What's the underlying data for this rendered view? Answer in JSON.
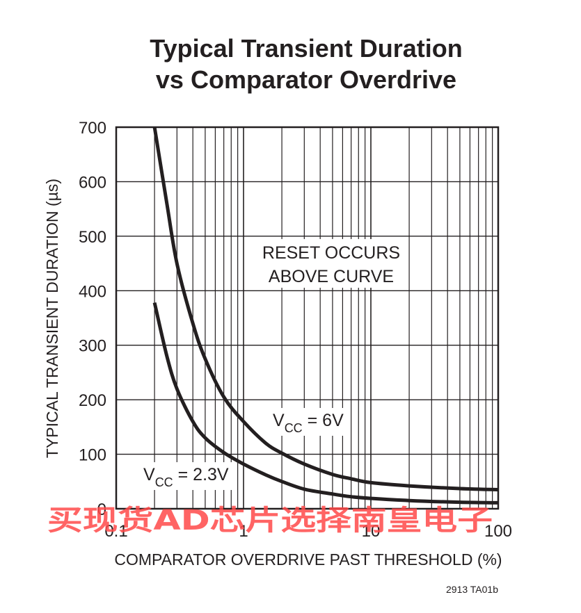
{
  "chart_data": {
    "type": "line",
    "title_lines": [
      "Typical Transient Duration",
      "vs Comparator Overdrive"
    ],
    "xlabel": "COMPARATOR OVERDRIVE PAST THRESHOLD (%)",
    "ylabel": "TYPICAL TRANSIENT DURATION (µs)",
    "xscale": "log",
    "xlim": [
      0.1,
      100
    ],
    "ylim": [
      0,
      700
    ],
    "xticks": [
      0.1,
      1,
      10,
      100
    ],
    "xtick_labels": [
      "0.1",
      "1",
      "10",
      "100"
    ],
    "yticks": [
      0,
      100,
      200,
      300,
      400,
      500,
      600,
      700
    ],
    "ytick_labels": [
      "0",
      "100",
      "200",
      "300",
      "400",
      "500",
      "600",
      "700"
    ],
    "grid": true,
    "series": [
      {
        "name": "VCC = 6V",
        "label_main": "V",
        "label_sub": "CC",
        "label_rest": " = 6V",
        "color": "#231f20",
        "x": [
          0.2,
          0.25,
          0.3,
          0.4,
          0.5,
          0.7,
          1,
          1.5,
          2,
          3,
          5,
          7,
          10,
          20,
          50,
          100
        ],
        "y": [
          700,
          560,
          450,
          340,
          275,
          205,
          160,
          120,
          102,
          82,
          63,
          55,
          48,
          42,
          37,
          35
        ]
      },
      {
        "name": "VCC = 2.3V",
        "label_main": "V",
        "label_sub": "CC",
        "label_rest": " = 2.3V",
        "color": "#231f20",
        "x": [
          0.2,
          0.25,
          0.3,
          0.4,
          0.5,
          0.7,
          1,
          1.5,
          2,
          3,
          5,
          7,
          10,
          20,
          50,
          100
        ],
        "y": [
          378,
          280,
          220,
          160,
          130,
          103,
          82,
          62,
          50,
          36,
          27,
          22,
          19,
          15,
          12,
          11
        ]
      }
    ],
    "annotations": [
      "RESET OCCURS",
      "ABOVE CURVE"
    ]
  },
  "figure_id": "2913 TA01b",
  "watermark": "买现货AD芯片选择南皇电子"
}
